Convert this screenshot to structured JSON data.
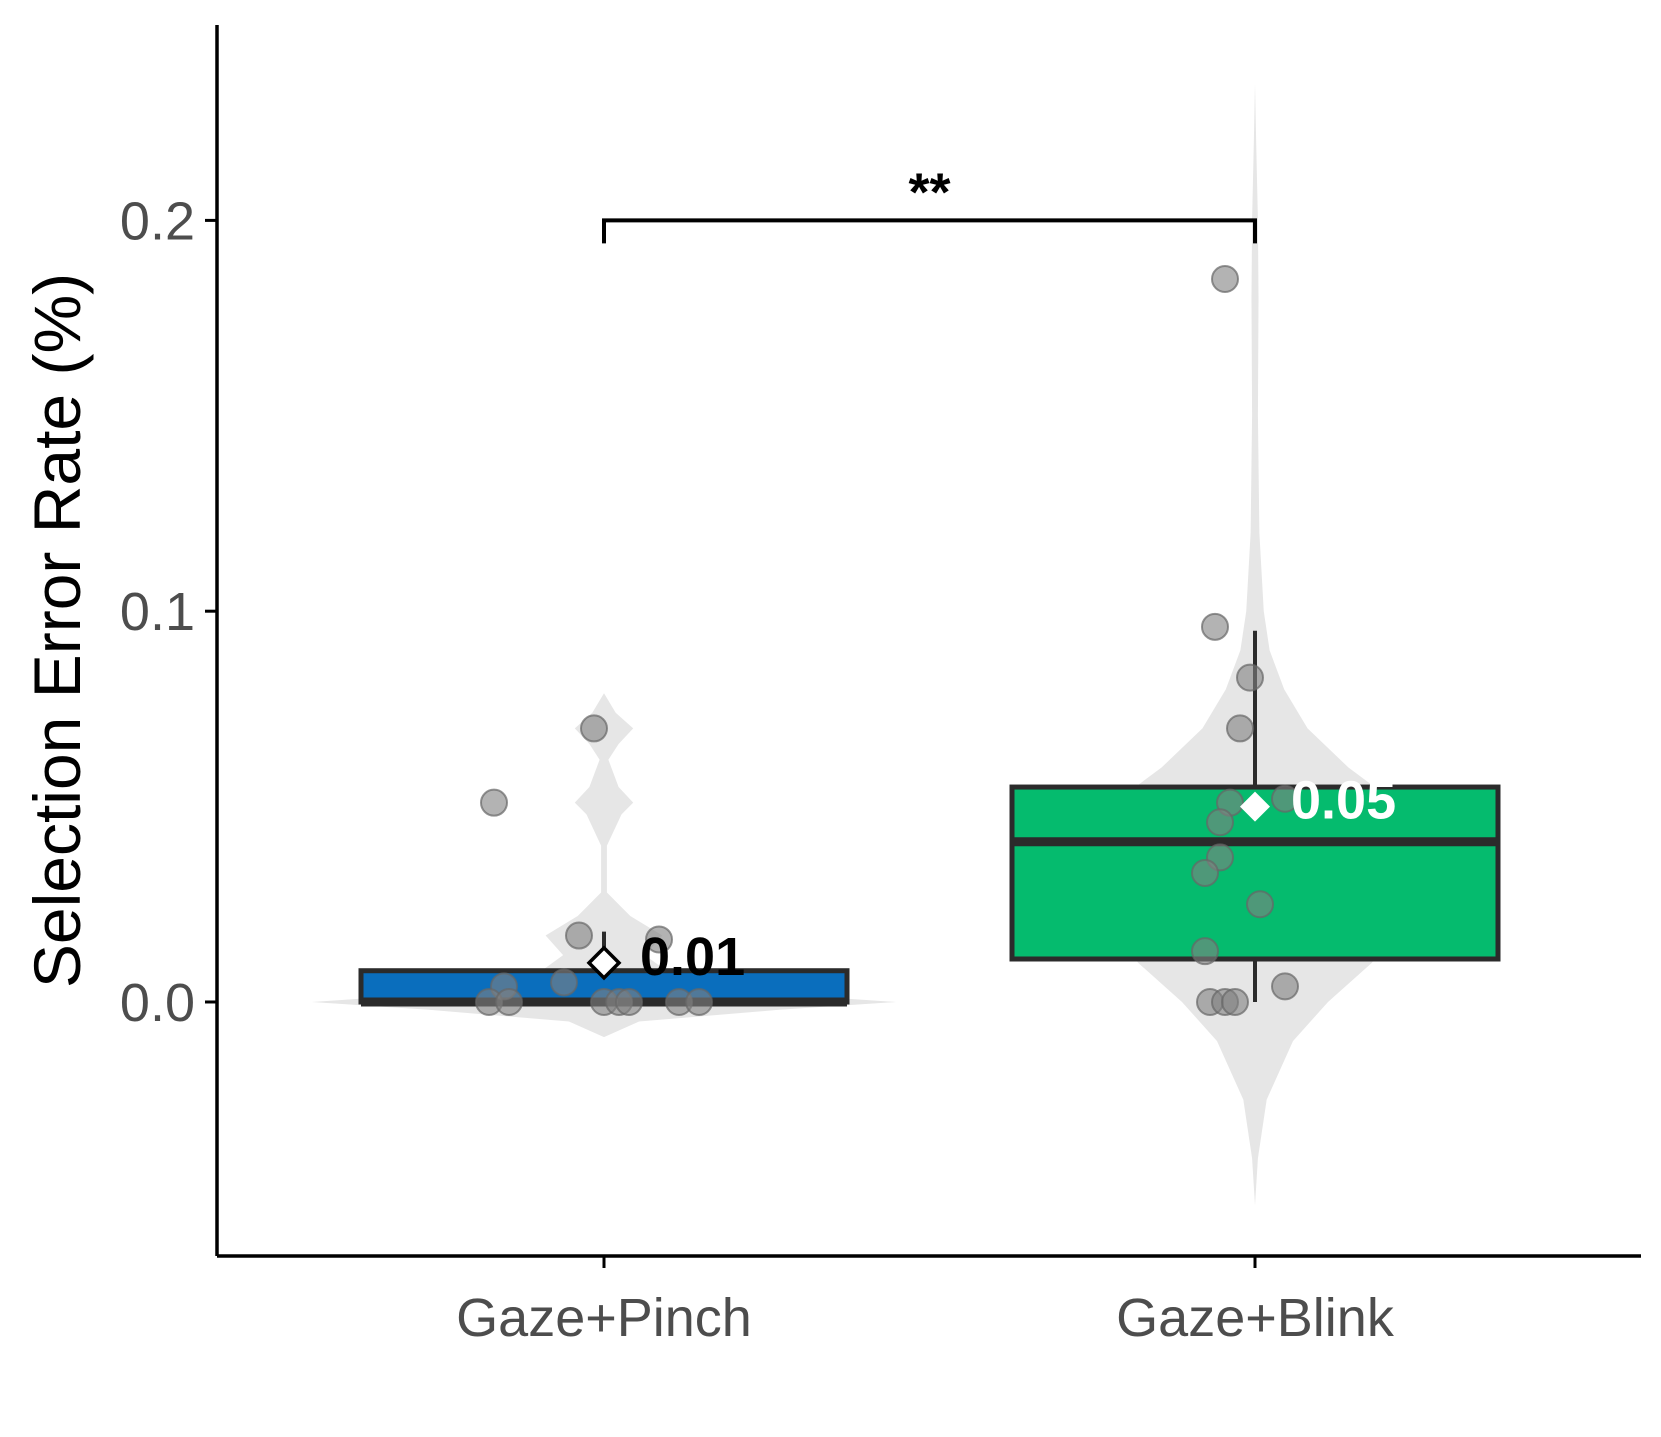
{
  "chart_data": {
    "type": "box",
    "ylabel": "Selection Error Rate (%)",
    "xlabel": "",
    "ylim": [
      -0.065,
      0.25
    ],
    "yticks": [
      0.0,
      0.1,
      0.2
    ],
    "ytick_labels": [
      "0.0",
      "0.1",
      "0.2"
    ],
    "grid": false,
    "categories": [
      "Gaze+Pinch",
      "Gaze+Blink"
    ],
    "groups": [
      {
        "name": "Gaze+Pinch",
        "color": "#0a6ebd",
        "box": {
          "q1": 0.0,
          "median": 0.0,
          "q3": 0.008,
          "whisker_low": 0.0,
          "whisker_high": 0.018
        },
        "mean": 0.01,
        "mean_label": "0.01",
        "points": [
          {
            "offset": -0.02,
            "y": 0.07
          },
          {
            "offset": -0.22,
            "y": 0.051
          },
          {
            "offset": -0.05,
            "y": 0.017
          },
          {
            "offset": 0.11,
            "y": 0.016
          },
          {
            "offset": -0.2,
            "y": 0.004
          },
          {
            "offset": -0.08,
            "y": 0.005
          },
          {
            "offset": -0.23,
            "y": 0.0
          },
          {
            "offset": -0.19,
            "y": 0.0
          },
          {
            "offset": 0.0,
            "y": 0.0
          },
          {
            "offset": 0.03,
            "y": 0.0
          },
          {
            "offset": 0.05,
            "y": 0.0
          },
          {
            "offset": 0.15,
            "y": 0.0
          },
          {
            "offset": 0.19,
            "y": 0.0
          }
        ],
        "violin": [
          {
            "y": -0.009,
            "w": 0.0
          },
          {
            "y": -0.005,
            "w": 0.12
          },
          {
            "y": -0.002,
            "w": 0.6
          },
          {
            "y": 0.0,
            "w": 1.0
          },
          {
            "y": 0.002,
            "w": 0.6
          },
          {
            "y": 0.006,
            "w": 0.25
          },
          {
            "y": 0.012,
            "w": 0.14
          },
          {
            "y": 0.017,
            "w": 0.2
          },
          {
            "y": 0.022,
            "w": 0.09
          },
          {
            "y": 0.028,
            "w": 0.01
          },
          {
            "y": 0.04,
            "w": 0.01
          },
          {
            "y": 0.048,
            "w": 0.06
          },
          {
            "y": 0.051,
            "w": 0.1
          },
          {
            "y": 0.055,
            "w": 0.05
          },
          {
            "y": 0.062,
            "w": 0.015
          },
          {
            "y": 0.066,
            "w": 0.05
          },
          {
            "y": 0.07,
            "w": 0.1
          },
          {
            "y": 0.074,
            "w": 0.04
          },
          {
            "y": 0.079,
            "w": 0.0
          }
        ]
      },
      {
        "name": "Gaze+Blink",
        "color": "#05bb6e",
        "box": {
          "q1": 0.011,
          "median": 0.041,
          "q3": 0.055,
          "whisker_low": 0.0,
          "whisker_high": 0.095
        },
        "mean": 0.05,
        "mean_label": "0.05",
        "points": [
          {
            "offset": -0.06,
            "y": 0.185
          },
          {
            "offset": -0.08,
            "y": 0.096
          },
          {
            "offset": -0.01,
            "y": 0.083
          },
          {
            "offset": -0.03,
            "y": 0.07
          },
          {
            "offset": 0.06,
            "y": 0.052
          },
          {
            "offset": -0.05,
            "y": 0.051
          },
          {
            "offset": -0.07,
            "y": 0.046
          },
          {
            "offset": -0.07,
            "y": 0.037
          },
          {
            "offset": -0.1,
            "y": 0.033
          },
          {
            "offset": 0.01,
            "y": 0.025
          },
          {
            "offset": -0.1,
            "y": 0.013
          },
          {
            "offset": 0.06,
            "y": 0.004
          },
          {
            "offset": -0.09,
            "y": 0.0
          },
          {
            "offset": -0.06,
            "y": 0.0
          },
          {
            "offset": -0.04,
            "y": 0.0
          }
        ],
        "violin": [
          {
            "y": -0.052,
            "w": 0.0
          },
          {
            "y": -0.04,
            "w": 0.01
          },
          {
            "y": -0.025,
            "w": 0.04
          },
          {
            "y": -0.01,
            "w": 0.13
          },
          {
            "y": 0.0,
            "w": 0.25
          },
          {
            "y": 0.01,
            "w": 0.4
          },
          {
            "y": 0.02,
            "w": 0.5
          },
          {
            "y": 0.03,
            "w": 0.57
          },
          {
            "y": 0.04,
            "w": 0.6
          },
          {
            "y": 0.05,
            "w": 0.5
          },
          {
            "y": 0.06,
            "w": 0.32
          },
          {
            "y": 0.07,
            "w": 0.18
          },
          {
            "y": 0.08,
            "w": 0.1
          },
          {
            "y": 0.09,
            "w": 0.05
          },
          {
            "y": 0.1,
            "w": 0.03
          },
          {
            "y": 0.12,
            "w": 0.015
          },
          {
            "y": 0.15,
            "w": 0.01
          },
          {
            "y": 0.18,
            "w": 0.012
          },
          {
            "y": 0.2,
            "w": 0.01
          },
          {
            "y": 0.22,
            "w": 0.004
          },
          {
            "y": 0.235,
            "w": 0.0
          }
        ]
      }
    ],
    "significance": {
      "from": "Gaze+Pinch",
      "to": "Gaze+Blink",
      "y": 0.2,
      "label": "**"
    },
    "colors": {
      "box_edge": "#2b2b2b",
      "violin": "#e6e6e6",
      "point_fill": "#808080",
      "point_opacity": 0.6,
      "axis": "#000000",
      "tick_label": "#4d4d4d"
    }
  }
}
